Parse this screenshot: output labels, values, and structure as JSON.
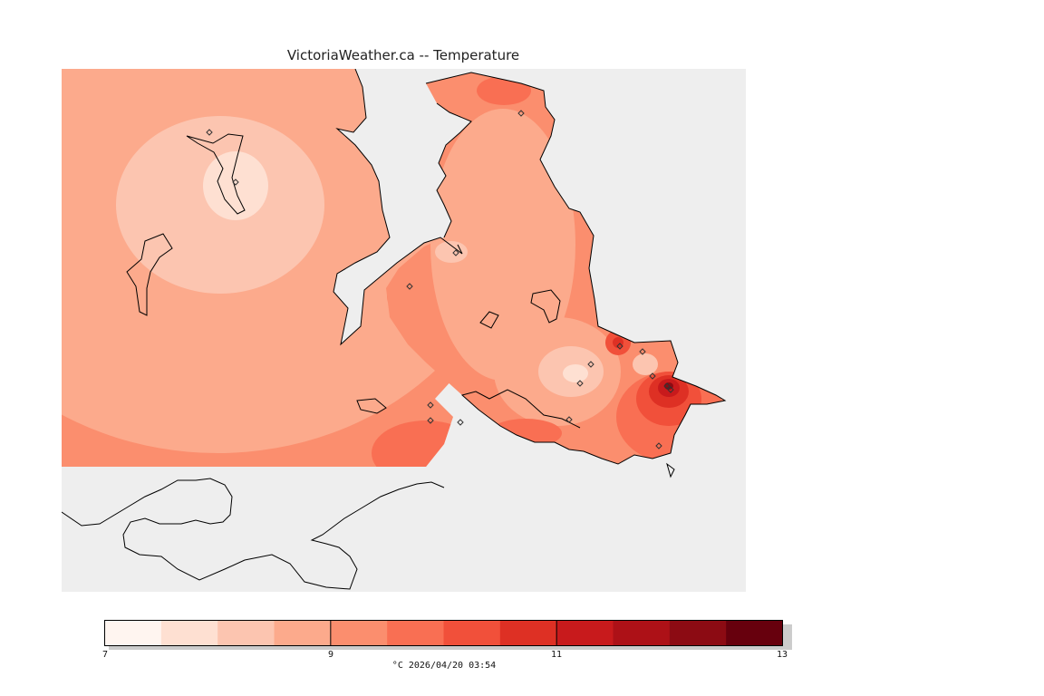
{
  "title": "VictoriaWeather.ca -- Temperature",
  "legend": {
    "colors": [
      "#fff5f0",
      "#fee0d2",
      "#fcc5b0",
      "#fcaa8c",
      "#fb8e6e",
      "#f96f53",
      "#f1503a",
      "#de3024",
      "#c81a1c",
      "#ad1117",
      "#8c0b13",
      "#67000d"
    ],
    "ticks": [
      "7",
      "9",
      "11",
      "13"
    ],
    "caption": "°C  2026/04/20 03:54"
  },
  "colors": {
    "water": "#eeeeee",
    "land_outside": "#ffffff",
    "coast": "#000000",
    "station": "#333333"
  }
}
